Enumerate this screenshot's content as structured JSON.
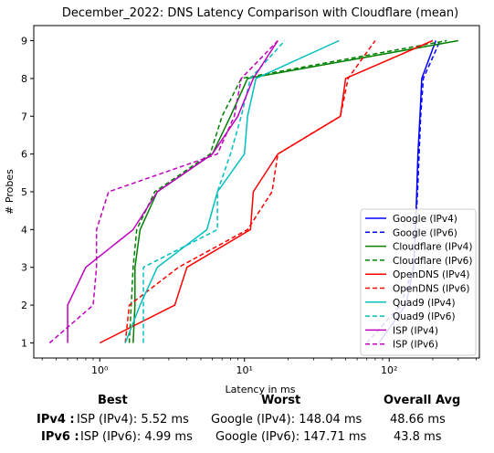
{
  "chart_data": {
    "type": "line",
    "title": "December_2022: DNS Latency Comparison with Cloudflare (mean)",
    "xlabel": "Latency in ms",
    "ylabel": "# Probes",
    "xscale": "log",
    "xlim": [
      0.35,
      420
    ],
    "ylim": [
      0.6,
      9.4
    ],
    "x_major_ticks": [
      1,
      10,
      100
    ],
    "x_major_tick_labels": [
      "10⁰",
      "10¹",
      "10²"
    ],
    "y_ticks": [
      1,
      2,
      3,
      4,
      5,
      6,
      7,
      8,
      9
    ],
    "y_tick_labels": [
      "1",
      "2",
      "3",
      "4",
      "5",
      "6",
      "7",
      "8",
      "9"
    ],
    "grid": false,
    "legend_position": "lower-right",
    "series": [
      {
        "name": "Google (IPv4)",
        "color": "#0000ff",
        "dash": "solid",
        "points": [
          [
            85,
            1
          ],
          [
            130,
            2
          ],
          [
            148,
            3
          ],
          [
            152,
            4
          ],
          [
            155,
            5
          ],
          [
            158,
            6
          ],
          [
            163,
            7
          ],
          [
            168,
            8
          ],
          [
            210,
            9
          ]
        ]
      },
      {
        "name": "Google (IPv6)",
        "color": "#0000ff",
        "dash": "dashed",
        "points": [
          [
            70,
            1
          ],
          [
            120,
            2
          ],
          [
            147,
            3
          ],
          [
            152,
            4
          ],
          [
            157,
            5
          ],
          [
            161,
            6
          ],
          [
            165,
            7
          ],
          [
            172,
            8
          ],
          [
            225,
            9
          ]
        ]
      },
      {
        "name": "Cloudflare (IPv4)",
        "color": "#008000",
        "dash": "solid",
        "points": [
          [
            1.7,
            1
          ],
          [
            1.75,
            2
          ],
          [
            1.75,
            3
          ],
          [
            1.9,
            4
          ],
          [
            2.5,
            5
          ],
          [
            6.0,
            6
          ],
          [
            8.0,
            7
          ],
          [
            10.5,
            8
          ],
          [
            300,
            9
          ]
        ]
      },
      {
        "name": "Cloudflare (IPv6)",
        "color": "#008000",
        "dash": "dashed",
        "points": [
          [
            1.6,
            1
          ],
          [
            1.65,
            2
          ],
          [
            1.7,
            3
          ],
          [
            1.8,
            4
          ],
          [
            2.4,
            5
          ],
          [
            5.8,
            6
          ],
          [
            7.0,
            7
          ],
          [
            9.5,
            8
          ],
          [
            250,
            9
          ]
        ]
      },
      {
        "name": "OpenDNS (IPv4)",
        "color": "#ff0000",
        "dash": "solid",
        "points": [
          [
            1.0,
            1
          ],
          [
            3.3,
            2
          ],
          [
            4.0,
            3
          ],
          [
            11.0,
            4
          ],
          [
            11.5,
            5
          ],
          [
            17.0,
            6
          ],
          [
            46,
            7
          ],
          [
            50,
            8
          ],
          [
            200,
            9
          ]
        ]
      },
      {
        "name": "OpenDNS (IPv6)",
        "color": "#ff0000",
        "dash": "dashed",
        "points": [
          [
            1.5,
            1
          ],
          [
            1.6,
            2
          ],
          [
            3.5,
            3
          ],
          [
            10.5,
            4
          ],
          [
            15.5,
            5
          ],
          [
            17.0,
            6
          ],
          [
            46,
            7
          ],
          [
            52,
            8
          ],
          [
            80,
            9
          ]
        ]
      },
      {
        "name": "Quad9 (IPv4)",
        "color": "#00bfbf",
        "dash": "solid",
        "points": [
          [
            1.5,
            1
          ],
          [
            1.9,
            2
          ],
          [
            2.5,
            3
          ],
          [
            5.5,
            4
          ],
          [
            6.5,
            5
          ],
          [
            10,
            6
          ],
          [
            10.5,
            7
          ],
          [
            12,
            8
          ],
          [
            45,
            9
          ]
        ]
      },
      {
        "name": "Quad9 (IPv6)",
        "color": "#00bfbf",
        "dash": "dashed",
        "points": [
          [
            2.0,
            1
          ],
          [
            2.0,
            2
          ],
          [
            2.0,
            3
          ],
          [
            6.5,
            4
          ],
          [
            6.5,
            5
          ],
          [
            8.0,
            6
          ],
          [
            9.5,
            7
          ],
          [
            11,
            8
          ],
          [
            19,
            9
          ]
        ]
      },
      {
        "name": "ISP (IPv4)",
        "color": "#bf00bf",
        "dash": "solid",
        "points": [
          [
            0.6,
            1
          ],
          [
            0.6,
            2
          ],
          [
            0.8,
            3
          ],
          [
            1.7,
            4
          ],
          [
            2.5,
            5
          ],
          [
            6.0,
            6
          ],
          [
            9.0,
            7
          ],
          [
            11.5,
            8
          ],
          [
            17,
            9
          ]
        ]
      },
      {
        "name": "ISP (IPv6)",
        "color": "#bf00bf",
        "dash": "dashed",
        "points": [
          [
            0.45,
            1
          ],
          [
            0.9,
            2
          ],
          [
            0.95,
            3
          ],
          [
            0.95,
            4
          ],
          [
            1.15,
            5
          ],
          [
            6.5,
            6
          ],
          [
            8.5,
            7
          ],
          [
            9.5,
            8
          ],
          [
            17,
            9
          ]
        ]
      }
    ]
  },
  "summary": {
    "headers": {
      "best": "Best",
      "worst": "Worst",
      "overall": "Overall Avg"
    },
    "ipv4": {
      "label": "IPv4 :",
      "best": "ISP (IPv4): 5.52 ms",
      "worst": "Google (IPv4): 148.04 ms",
      "overall": "48.66 ms"
    },
    "ipv6": {
      "label": "IPv6 :",
      "best": "ISP (IPv6): 4.99 ms",
      "worst": "Google (IPv6): 147.71 ms",
      "overall": "43.8 ms"
    }
  }
}
